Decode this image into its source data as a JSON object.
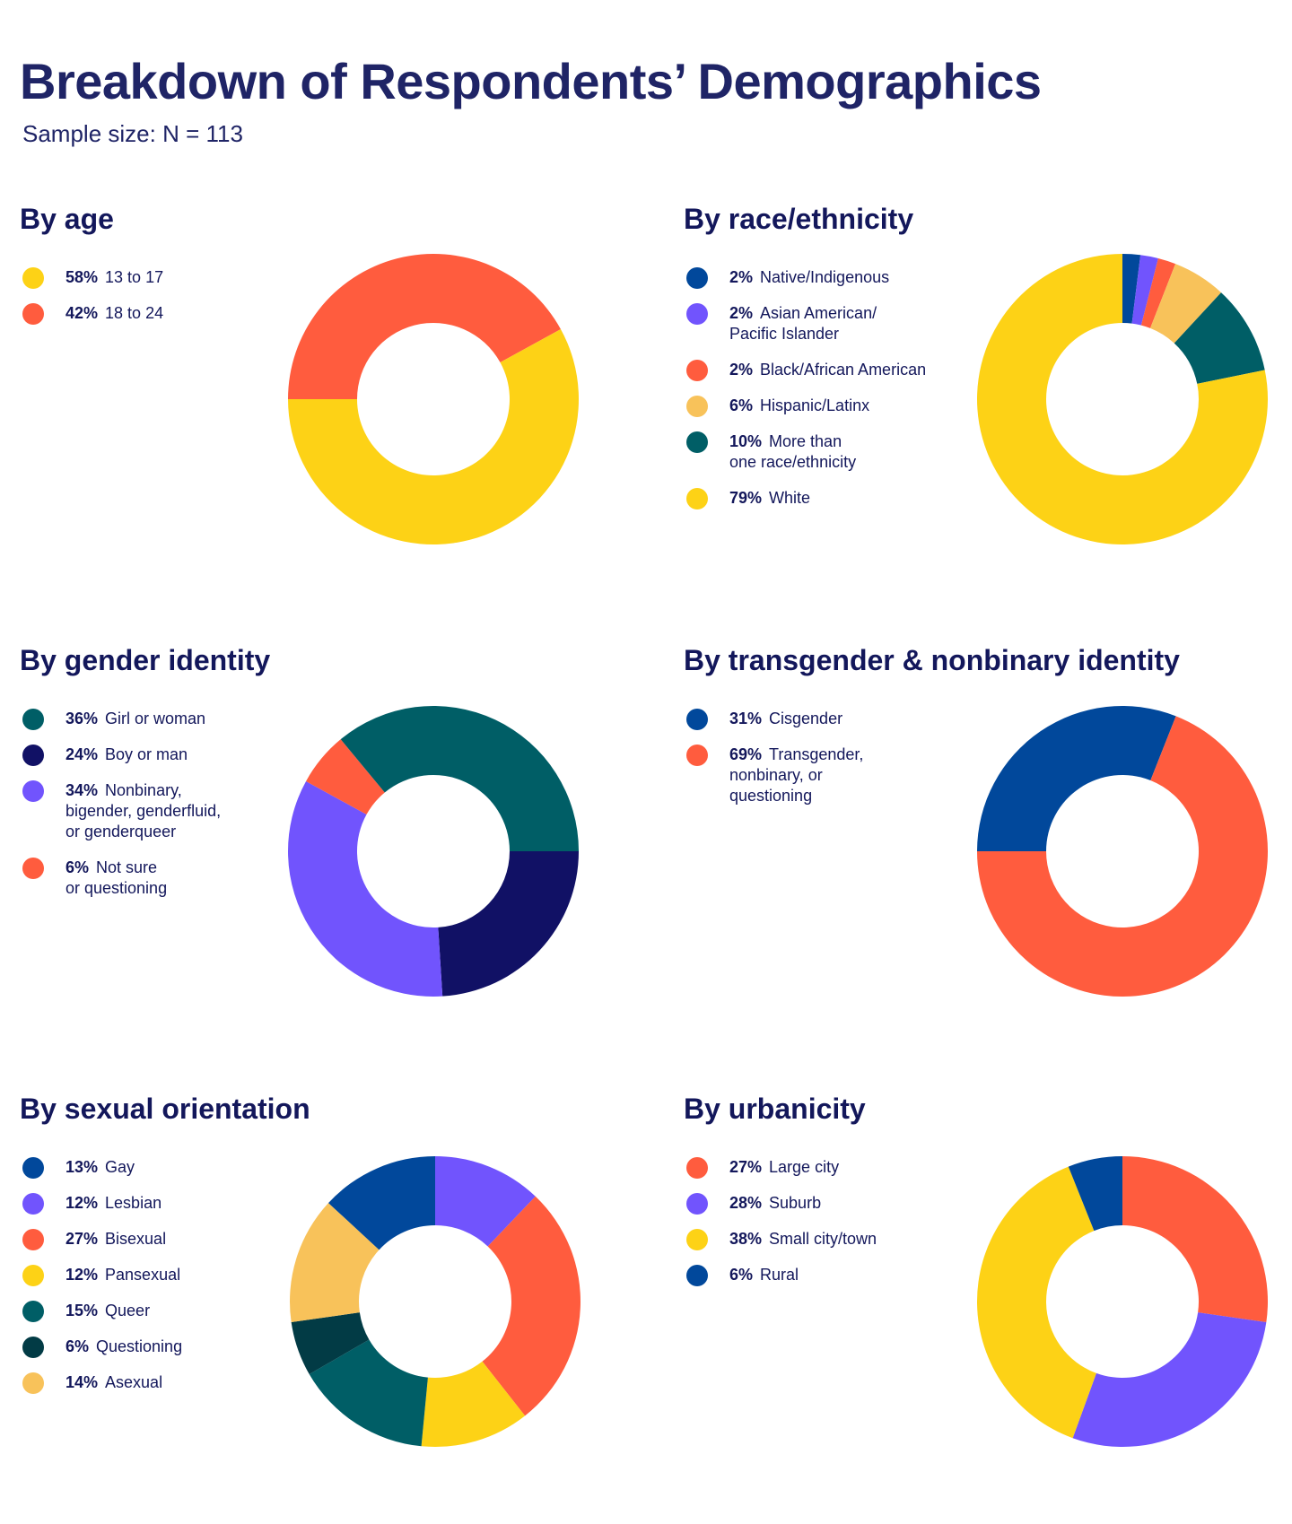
{
  "header": {
    "title": "Breakdown of Respondents’ Demographics",
    "subtitle": "Sample size: N = 113"
  },
  "colors": {
    "yellow": "#fdd216",
    "orange": "#ff5c3e",
    "blue": "#01489b",
    "purple": "#7154fd",
    "teal": "#005e66",
    "navy": "#111165",
    "dark_teal": "#023b45",
    "light_orange": "#f8c25a"
  },
  "chart_data": [
    {
      "type": "pie",
      "title": "By age",
      "start_angle": 180,
      "slices": [
        {
          "pct": "58%",
          "label": "13 to 17",
          "value": 58,
          "color": "#fdd216"
        },
        {
          "pct": "42%",
          "label": "18 to 24",
          "value": 42,
          "color": "#ff5c3e"
        }
      ],
      "order": [
        1,
        0
      ]
    },
    {
      "type": "pie",
      "title": "By race/ethnicity",
      "start_angle": 270,
      "slices": [
        {
          "pct": "2%",
          "label": "Native/Indigenous",
          "value": 2,
          "color": "#01489b"
        },
        {
          "pct": "2%",
          "label": "Asian American/\nPacific Islander",
          "value": 2,
          "color": "#7154fd"
        },
        {
          "pct": "2%",
          "label": "Black/African American",
          "value": 2,
          "color": "#ff5c3e"
        },
        {
          "pct": "6%",
          "label": "Hispanic/Latinx",
          "value": 6,
          "color": "#f8c25a"
        },
        {
          "pct": "10%",
          "label": "More than\none race/ethnicity",
          "value": 10,
          "color": "#005e66"
        },
        {
          "pct": "79%",
          "label": "White",
          "value": 79,
          "color": "#fdd216"
        }
      ],
      "order": [
        0,
        1,
        2,
        3,
        4,
        5
      ]
    },
    {
      "type": "pie",
      "title": "By gender identity",
      "start_angle": 0,
      "slices": [
        {
          "pct": "36%",
          "label": "Girl or woman",
          "value": 36,
          "color": "#005e66"
        },
        {
          "pct": "24%",
          "label": "Boy or man",
          "value": 24,
          "color": "#111165"
        },
        {
          "pct": "34%",
          "label": "Nonbinary,\nbigender, genderfluid,\nor genderqueer",
          "value": 34,
          "color": "#7154fd"
        },
        {
          "pct": "6%",
          "label": "Not sure\nor questioning",
          "value": 6,
          "color": "#ff5c3e"
        }
      ],
      "order": [
        1,
        2,
        3,
        0
      ]
    },
    {
      "type": "pie",
      "title": "By transgender & nonbinary identity",
      "start_angle": 180,
      "slices": [
        {
          "pct": "31%",
          "label": "Cisgender",
          "value": 31,
          "color": "#01489b"
        },
        {
          "pct": "69%",
          "label": "Transgender,\nnonbinary, or\nquestioning",
          "value": 69,
          "color": "#ff5c3e"
        }
      ],
      "order": [
        0,
        1
      ]
    },
    {
      "type": "pie",
      "title": "By sexual orientation",
      "start_angle": 270,
      "slices": [
        {
          "pct": "13%",
          "label": "Gay",
          "value": 13,
          "color": "#01489b"
        },
        {
          "pct": "12%",
          "label": "Lesbian",
          "value": 12,
          "color": "#7154fd"
        },
        {
          "pct": "27%",
          "label": "Bisexual",
          "value": 27,
          "color": "#ff5c3e"
        },
        {
          "pct": "12%",
          "label": "Pansexual",
          "value": 12,
          "color": "#fdd216"
        },
        {
          "pct": "15%",
          "label": "Queer",
          "value": 15,
          "color": "#005e66"
        },
        {
          "pct": "6%",
          "label": "Questioning",
          "value": 6,
          "color": "#023b45"
        },
        {
          "pct": "14%",
          "label": "Asexual",
          "value": 14,
          "color": "#f8c25a"
        }
      ],
      "order": [
        1,
        2,
        3,
        4,
        5,
        6,
        0
      ]
    },
    {
      "type": "pie",
      "title": "By urbanicity",
      "start_angle": 270,
      "slices": [
        {
          "pct": "27%",
          "label": "Large city",
          "value": 27,
          "color": "#ff5c3e"
        },
        {
          "pct": "28%",
          "label": "Suburb",
          "value": 28,
          "color": "#7154fd"
        },
        {
          "pct": "38%",
          "label": "Small city/town",
          "value": 38,
          "color": "#fdd216"
        },
        {
          "pct": "6%",
          "label": "Rural",
          "value": 6,
          "color": "#01489b"
        }
      ],
      "order": [
        0,
        1,
        2,
        3
      ]
    }
  ]
}
